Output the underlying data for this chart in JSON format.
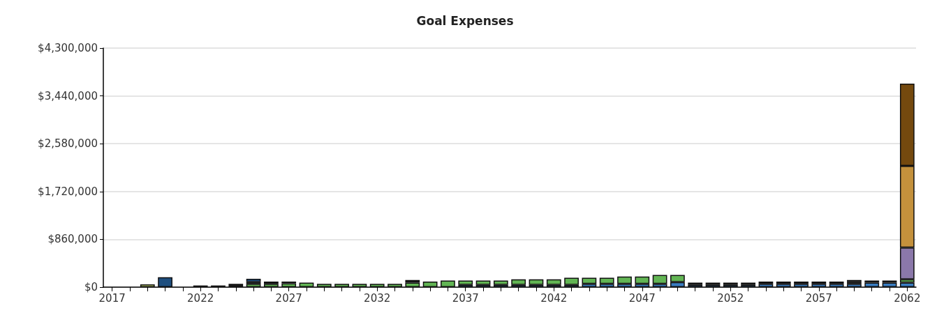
{
  "chart_data": {
    "type": "bar",
    "title": "Goal Expenses",
    "stacked": true,
    "grid": "y",
    "categories": [
      "2017",
      null,
      null,
      null,
      null,
      "2022",
      null,
      null,
      null,
      null,
      "2027",
      null,
      null,
      null,
      null,
      "2032",
      null,
      null,
      null,
      null,
      "2037",
      null,
      null,
      null,
      null,
      "2042",
      null,
      null,
      null,
      null,
      "2047",
      null,
      null,
      null,
      null,
      "2052",
      null,
      null,
      null,
      null,
      "2057",
      null,
      null,
      null,
      null,
      "2062"
    ],
    "ylim": [
      0,
      4300000
    ],
    "yticks": [
      {
        "value": 0,
        "label": "$0"
      },
      {
        "value": 860000,
        "label": "$860,000"
      },
      {
        "value": 1720000,
        "label": "$1,720,000"
      },
      {
        "value": 2580000,
        "label": "$2,580,000"
      },
      {
        "value": 3440000,
        "label": "$3,440,000"
      },
      {
        "value": 4300000,
        "label": "$4,300,000"
      }
    ],
    "series": [
      {
        "color": "#3a7dc2",
        "values": [
          null,
          null,
          null,
          null,
          null,
          null,
          null,
          null,
          null,
          null,
          null,
          null,
          null,
          null,
          null,
          null,
          null,
          null,
          null,
          null,
          40000,
          40000,
          40000,
          40000,
          40000,
          40000,
          40000,
          60000,
          60000,
          60000,
          60000,
          60000,
          90000,
          40000,
          40000,
          40000,
          40000,
          60000,
          60000,
          60000,
          60000,
          60000,
          60000,
          80000,
          80000,
          80000
        ]
      },
      {
        "color": "#62b554",
        "values": [
          null,
          null,
          null,
          null,
          null,
          null,
          null,
          null,
          60000,
          60000,
          70000,
          80000,
          60000,
          60000,
          60000,
          60000,
          60000,
          80000,
          100000,
          120000,
          80000,
          80000,
          80000,
          100000,
          100000,
          100000,
          130000,
          110000,
          110000,
          130000,
          130000,
          160000,
          130000,
          null,
          null,
          null,
          null,
          null,
          null,
          null,
          null,
          null,
          30000,
          null,
          null,
          60000
        ]
      },
      {
        "color": "#7aaee0",
        "values": [
          null,
          null,
          null,
          null,
          null,
          null,
          null,
          null,
          30000,
          null,
          null,
          null,
          null,
          null,
          null,
          null,
          null,
          null,
          null,
          null,
          null,
          null,
          null,
          null,
          null,
          null,
          null,
          null,
          null,
          null,
          null,
          null,
          null,
          null,
          null,
          null,
          null,
          null,
          null,
          null,
          null,
          null,
          null,
          null,
          null,
          null
        ]
      },
      {
        "color": "#1f4f7f",
        "values": [
          null,
          null,
          null,
          180000,
          null,
          null,
          null,
          null,
          60000,
          null,
          null,
          null,
          null,
          null,
          null,
          null,
          null,
          null,
          null,
          null,
          null,
          null,
          null,
          null,
          null,
          null,
          null,
          null,
          null,
          null,
          null,
          null,
          null,
          null,
          null,
          null,
          null,
          null,
          null,
          null,
          null,
          null,
          null,
          null,
          null,
          null
        ]
      },
      {
        "color": "#1a1a1a",
        "values": [
          null,
          null,
          null,
          null,
          null,
          30000,
          30000,
          60000,
          null,
          40000,
          30000,
          null,
          null,
          null,
          null,
          null,
          null,
          50000,
          null,
          null,
          null,
          null,
          null,
          null,
          null,
          null,
          null,
          null,
          null,
          null,
          null,
          null,
          null,
          40000,
          40000,
          40000,
          40000,
          40000,
          40000,
          40000,
          40000,
          40000,
          40000,
          40000,
          40000,
          null
        ]
      },
      {
        "color": "#c5d86d",
        "values": [
          null,
          null,
          50000,
          null,
          null,
          null,
          null,
          null,
          null,
          null,
          null,
          null,
          null,
          null,
          null,
          null,
          null,
          null,
          null,
          null,
          null,
          null,
          null,
          null,
          null,
          null,
          null,
          null,
          null,
          null,
          null,
          null,
          null,
          null,
          null,
          null,
          null,
          null,
          null,
          null,
          null,
          null,
          null,
          null,
          null,
          null
        ]
      },
      {
        "color": "#8b78aa",
        "values": [
          null,
          null,
          null,
          null,
          null,
          null,
          null,
          null,
          null,
          null,
          null,
          null,
          null,
          null,
          null,
          null,
          null,
          null,
          null,
          null,
          null,
          null,
          null,
          null,
          null,
          null,
          null,
          null,
          null,
          null,
          null,
          null,
          null,
          null,
          null,
          null,
          null,
          null,
          null,
          null,
          null,
          null,
          null,
          null,
          null,
          570000
        ]
      },
      {
        "color": "#c4913c",
        "values": [
          null,
          null,
          null,
          null,
          null,
          null,
          null,
          null,
          null,
          null,
          null,
          null,
          null,
          null,
          null,
          null,
          null,
          null,
          null,
          null,
          null,
          null,
          null,
          null,
          null,
          null,
          null,
          null,
          null,
          null,
          null,
          null,
          null,
          null,
          null,
          null,
          null,
          null,
          null,
          null,
          null,
          null,
          null,
          null,
          null,
          1470000
        ]
      },
      {
        "color": "#74490e",
        "values": [
          null,
          null,
          null,
          null,
          null,
          null,
          null,
          null,
          null,
          null,
          null,
          null,
          null,
          null,
          null,
          null,
          null,
          null,
          null,
          null,
          null,
          null,
          null,
          null,
          null,
          null,
          null,
          null,
          null,
          null,
          null,
          null,
          null,
          null,
          null,
          null,
          null,
          null,
          null,
          null,
          null,
          null,
          null,
          null,
          null,
          1480000
        ]
      }
    ]
  }
}
